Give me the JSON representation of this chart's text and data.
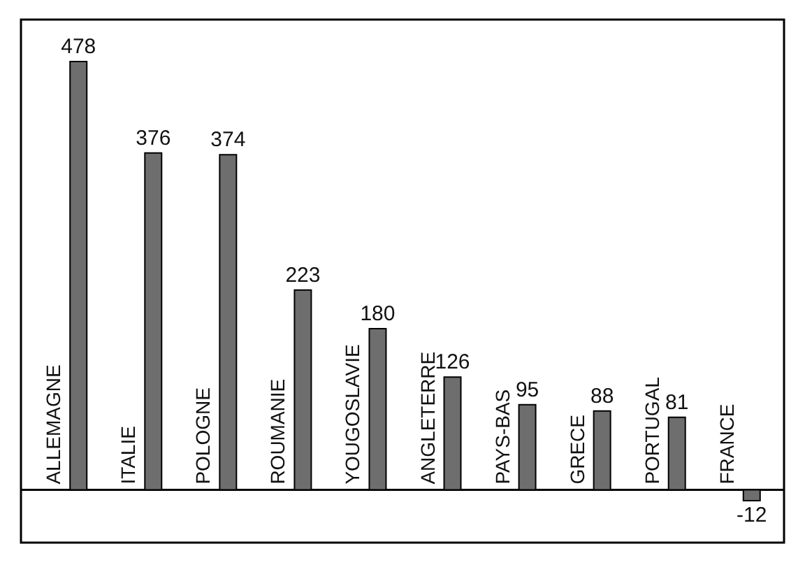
{
  "chart_data": {
    "type": "bar",
    "categories": [
      "ALLEMAGNE",
      "ITALIE",
      "POLOGNE",
      "ROUMANIE",
      "YOUGOSLAVIE",
      "ANGLETERRE",
      "PAYS-BAS",
      "GRECE",
      "PORTUGAL",
      "FRANCE"
    ],
    "values": [
      478,
      376,
      374,
      223,
      180,
      126,
      95,
      88,
      81,
      -12
    ],
    "color": "#6e6e6e",
    "data_labels": true
  }
}
